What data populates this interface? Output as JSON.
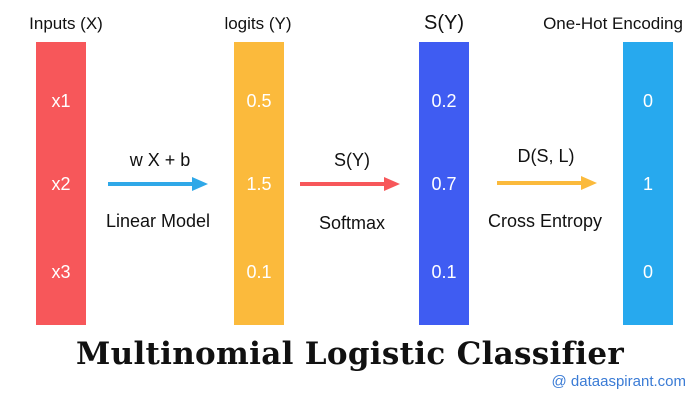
{
  "columns": [
    {
      "title": "Inputs (X)",
      "color": "#f7575a",
      "values": [
        "x1",
        "x2",
        "x3"
      ]
    },
    {
      "title": "logits (Y)",
      "color": "#fbba3c",
      "values": [
        "0.5",
        "1.5",
        "0.1"
      ]
    },
    {
      "title": "S(Y)",
      "color": "#3f5cf2",
      "values": [
        "0.2",
        "0.7",
        "0.1"
      ]
    },
    {
      "title": "One-Hot Encoding",
      "color": "#27a9ee",
      "values": [
        "0",
        "1",
        "0"
      ]
    }
  ],
  "arrows": [
    {
      "top_label": "w X + b",
      "bottom_label": "Linear Model",
      "color": "#2fa8e8"
    },
    {
      "top_label": "S(Y)",
      "bottom_label": "Softmax",
      "color": "#f7575a"
    },
    {
      "top_label": "D(S, L)",
      "bottom_label": "Cross Entropy",
      "color": "#fbba3c"
    }
  ],
  "title": "Multinomial Logistic Classifier",
  "watermark": "@ dataaspirant.com"
}
